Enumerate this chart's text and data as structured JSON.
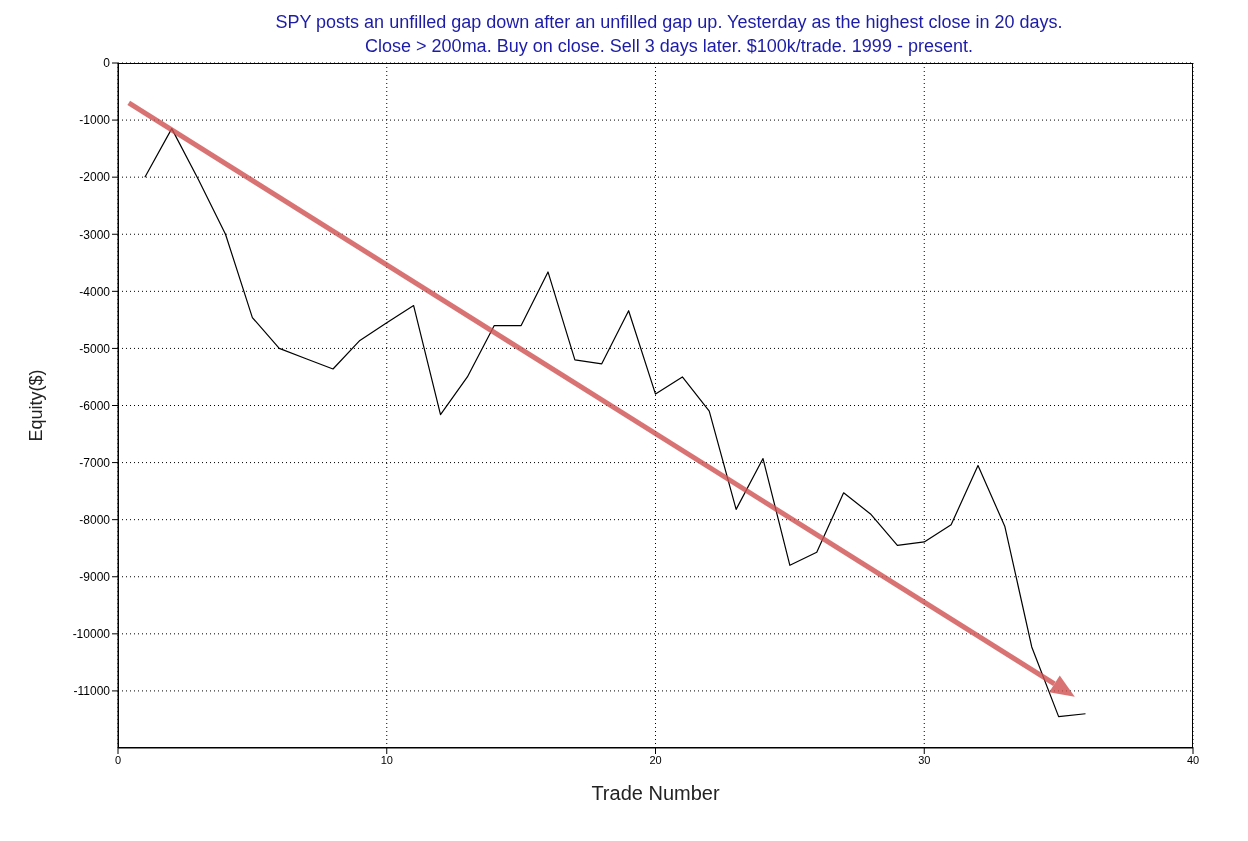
{
  "chart_data": {
    "type": "line",
    "title": "SPY posts an unfilled gap down after an unfilled gap up. Yesterday as the highest close in 20 days.\nClose > 200ma. Buy on close. Sell 3 days later. $100k/trade. 1999 - present.",
    "xlabel": "Trade Number",
    "ylabel": "Equity($)",
    "x": [
      1,
      2,
      3,
      4,
      5,
      6,
      7,
      8,
      9,
      10,
      11,
      12,
      13,
      14,
      15,
      16,
      17,
      18,
      19,
      20,
      21,
      22,
      23,
      24,
      25,
      26,
      27,
      28,
      29,
      30,
      31,
      32,
      33,
      34,
      35,
      36
    ],
    "series": [
      {
        "color": "#000000",
        "values": [
          -2000,
          -1150,
          -2050,
          -3000,
          -4460,
          -5000,
          -5180,
          -5360,
          -4860,
          -4550,
          -4250,
          -6160,
          -5500,
          -4600,
          -4600,
          -3660,
          -5200,
          -5270,
          -4340,
          -5800,
          -5500,
          -6100,
          -7820,
          -6930,
          -8800,
          -8570,
          -7530,
          -7900,
          -8450,
          -8390,
          -8090,
          -7050,
          -8120,
          -10230,
          -11450,
          -11400
        ]
      }
    ],
    "xlim": [
      0,
      40
    ],
    "xticks": [
      0,
      10,
      20,
      30,
      40
    ],
    "ylim": [
      -12000,
      0
    ],
    "yticks": [
      0,
      -1000,
      -2000,
      -3000,
      -4000,
      -5000,
      -6000,
      -7000,
      -8000,
      -9000,
      -10000,
      -11000
    ],
    "grid": true,
    "marker": "none",
    "line_style": "solid"
  }
}
